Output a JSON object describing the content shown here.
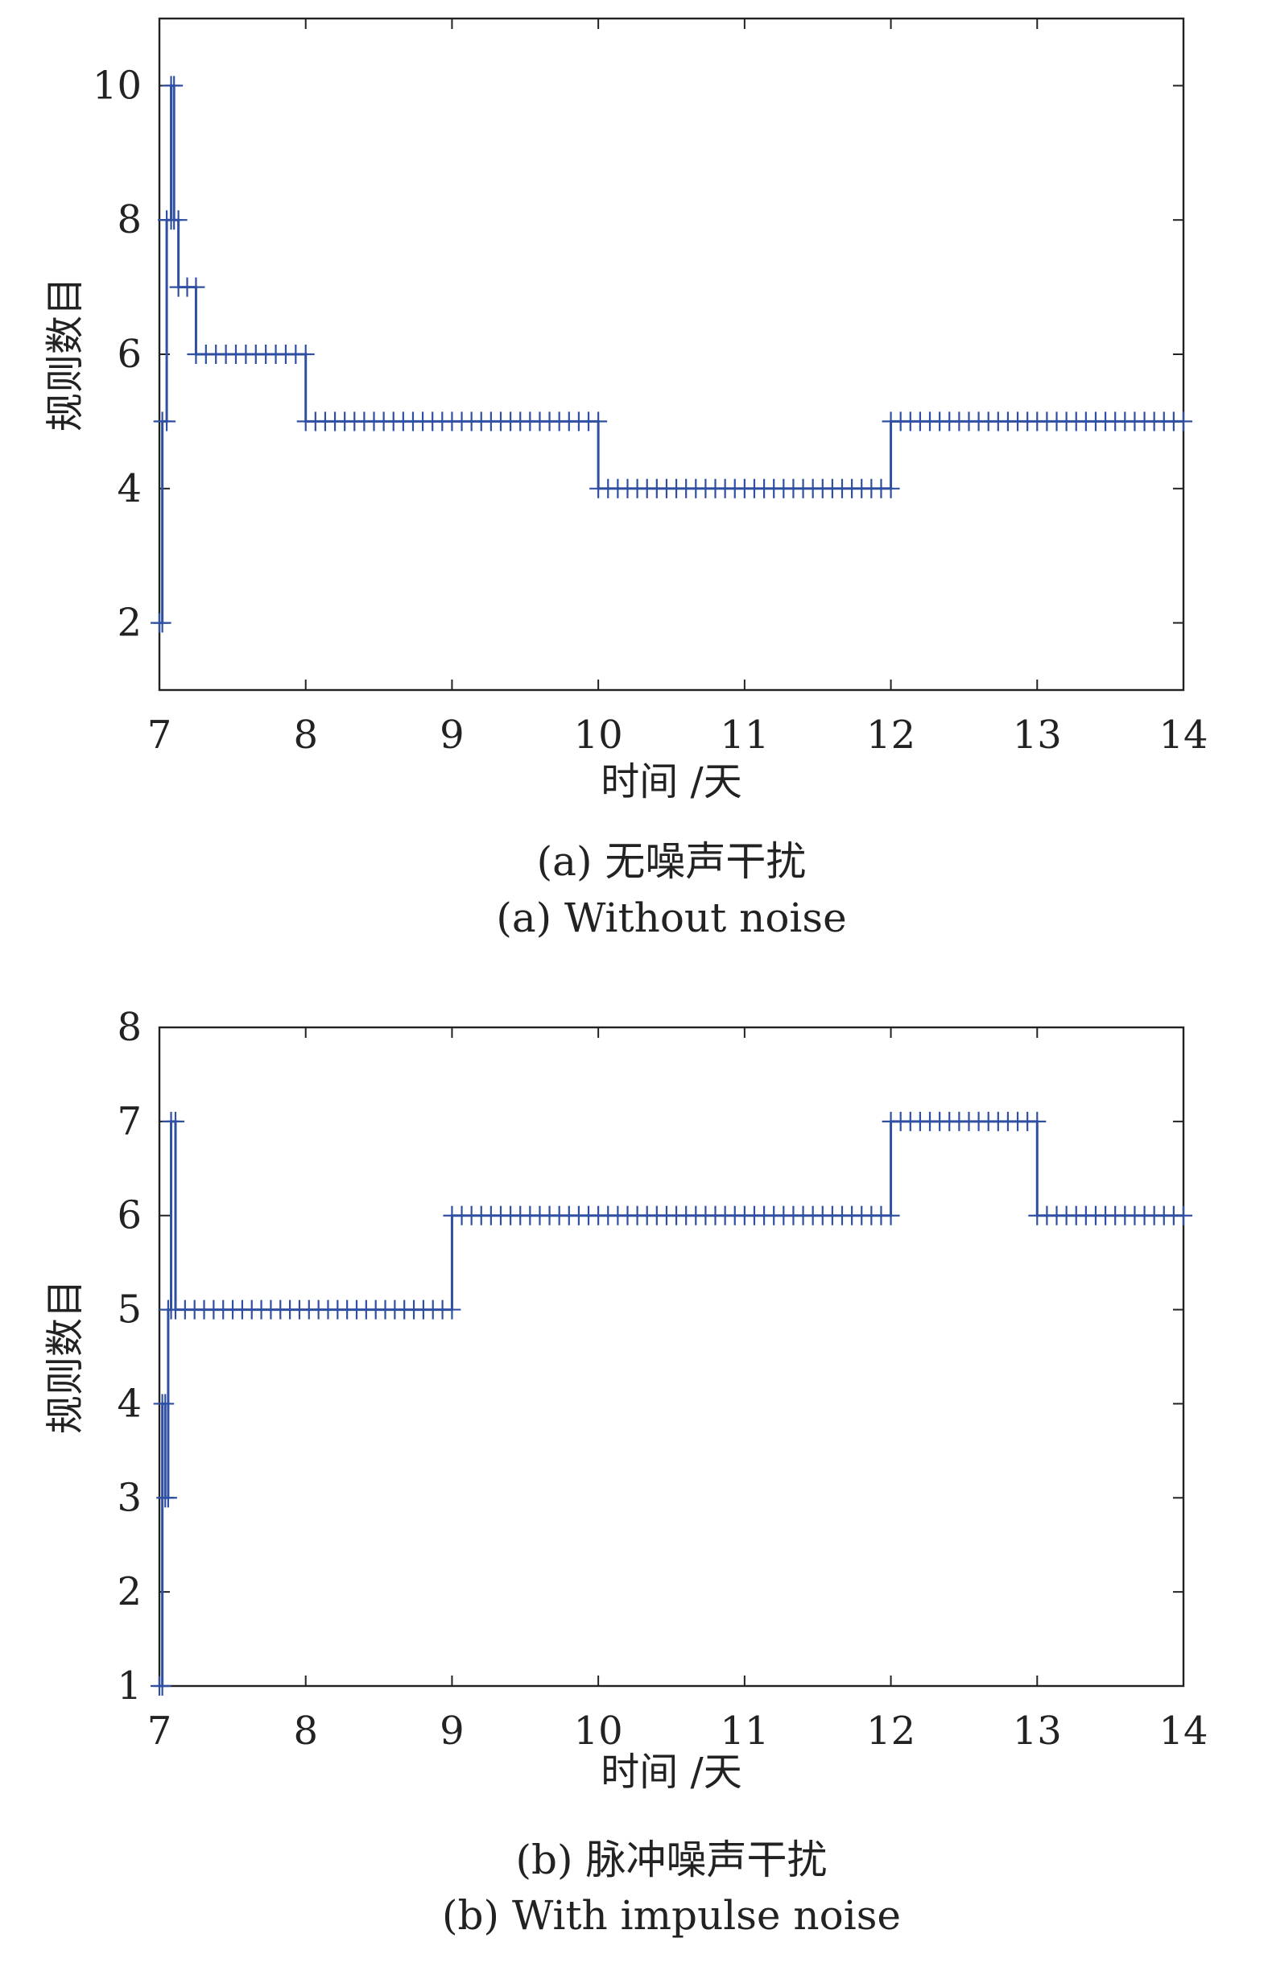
{
  "chart_data": [
    {
      "type": "line",
      "id": "a",
      "xlabel": "时间 /天",
      "ylabel": "规则数目",
      "xlim": [
        7,
        14
      ],
      "ylim": [
        1,
        11
      ],
      "xticks": [
        7,
        8,
        9,
        10,
        11,
        12,
        13,
        14
      ],
      "yticks": [
        2,
        4,
        6,
        8,
        10
      ],
      "caption_cn": "(a) 无噪声干扰",
      "caption_en": "(a) Without noise",
      "grid": false,
      "color": "#2f4fa2",
      "series": [
        {
          "steps": [
            {
              "x0": 7.0,
              "x1": 7.02,
              "y": 2
            },
            {
              "x0": 7.02,
              "x1": 7.05,
              "y": 5
            },
            {
              "x0": 7.05,
              "x1": 7.08,
              "y": 8
            },
            {
              "x0": 7.08,
              "x1": 7.1,
              "y": 10
            },
            {
              "x0": 7.1,
              "x1": 7.13,
              "y": 8
            },
            {
              "x0": 7.13,
              "x1": 7.25,
              "y": 7
            },
            {
              "x0": 7.25,
              "x1": 8.0,
              "y": 6
            },
            {
              "x0": 8.0,
              "x1": 10.0,
              "y": 5
            },
            {
              "x0": 10.0,
              "x1": 12.0,
              "y": 4
            },
            {
              "x0": 12.0,
              "x1": 14.0,
              "y": 5
            }
          ]
        }
      ]
    },
    {
      "type": "line",
      "id": "b",
      "xlabel": "时间 /天",
      "ylabel": "规则数目",
      "xlim": [
        7,
        14
      ],
      "ylim": [
        1,
        8
      ],
      "xticks": [
        7,
        8,
        9,
        10,
        11,
        12,
        13,
        14
      ],
      "yticks": [
        1,
        2,
        3,
        4,
        5,
        6,
        7,
        8
      ],
      "caption_cn": "(b) 脉冲噪声干扰",
      "caption_en": "(b) With impulse noise",
      "grid": false,
      "color": "#2f4fa2",
      "series": [
        {
          "steps": [
            {
              "x0": 7.0,
              "x1": 7.02,
              "y": 1
            },
            {
              "x0": 7.02,
              "x1": 7.04,
              "y": 4
            },
            {
              "x0": 7.04,
              "x1": 7.06,
              "y": 3
            },
            {
              "x0": 7.06,
              "x1": 7.08,
              "y": 5
            },
            {
              "x0": 7.08,
              "x1": 7.11,
              "y": 7
            },
            {
              "x0": 7.11,
              "x1": 9.0,
              "y": 5
            },
            {
              "x0": 9.0,
              "x1": 12.0,
              "y": 6
            },
            {
              "x0": 12.0,
              "x1": 13.0,
              "y": 7
            },
            {
              "x0": 13.0,
              "x1": 14.0,
              "y": 6
            }
          ]
        }
      ]
    }
  ]
}
